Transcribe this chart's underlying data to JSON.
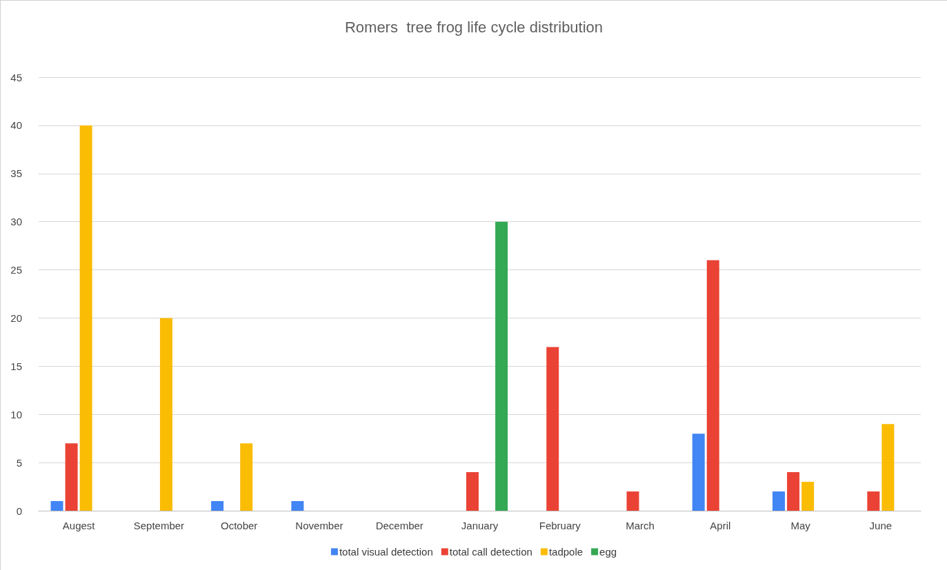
{
  "chart_data": {
    "type": "bar",
    "title": "Romers  tree frog life cycle distribution",
    "categories": [
      "Augest",
      "September",
      "October",
      "November",
      "December",
      "January",
      "February",
      "March",
      "April",
      "May",
      "June"
    ],
    "series": [
      {
        "name": "total visual detection",
        "color": "#4285f4",
        "values": [
          1,
          null,
          1,
          1,
          null,
          null,
          null,
          null,
          8,
          2,
          null
        ]
      },
      {
        "name": "total call detection",
        "color": "#ea4335",
        "values": [
          7,
          null,
          null,
          null,
          null,
          4,
          17,
          2,
          26,
          4,
          2
        ]
      },
      {
        "name": "tadpole",
        "color": "#fbbc04",
        "values": [
          40,
          20,
          7,
          null,
          null,
          null,
          null,
          null,
          null,
          3,
          9
        ]
      },
      {
        "name": "egg",
        "color": "#34a853",
        "values": [
          null,
          null,
          null,
          null,
          null,
          30,
          null,
          null,
          null,
          null,
          null
        ]
      }
    ],
    "ylim": [
      0,
      45
    ],
    "yticks": [
      0,
      5,
      10,
      15,
      20,
      25,
      30,
      35,
      40,
      45
    ],
    "grid": "y",
    "legend": "bottom"
  }
}
